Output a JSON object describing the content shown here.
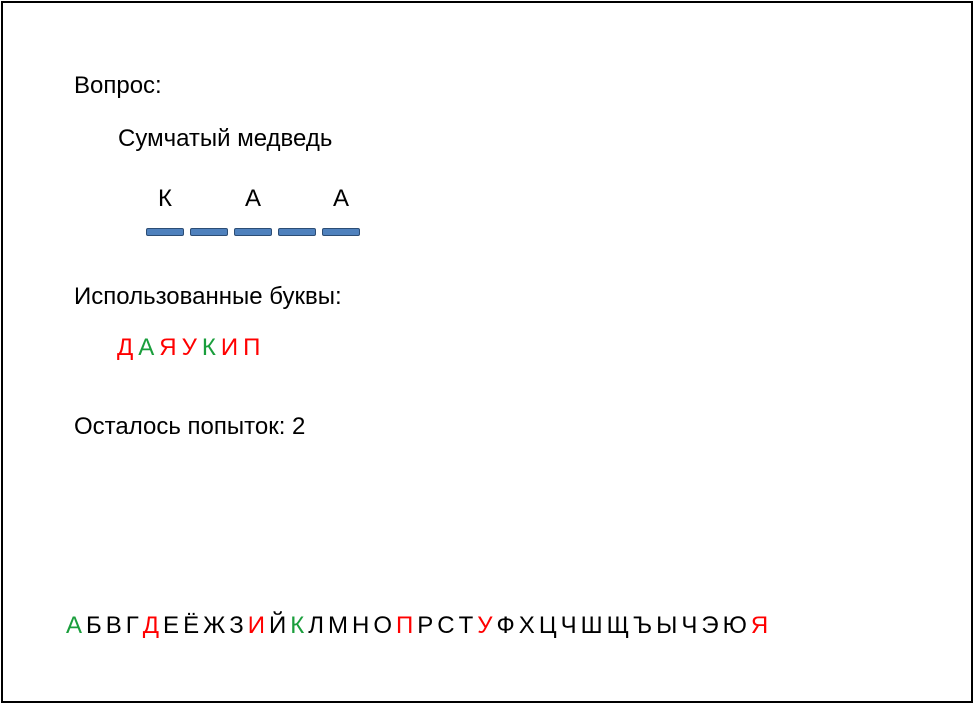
{
  "colors": {
    "correct": "#1a9e3c",
    "wrong": "#ff0000",
    "default": "#000000",
    "slot_bar": "#4f81bd"
  },
  "question": {
    "label": "Вопрос:",
    "hint": "Сумчатый медведь"
  },
  "word": {
    "slots": [
      "К",
      "",
      "А",
      "",
      "А"
    ]
  },
  "used": {
    "label": "Использованные буквы:",
    "letters": [
      {
        "char": "Д",
        "status": "wrong"
      },
      {
        "char": "А",
        "status": "correct"
      },
      {
        "char": "Я",
        "status": "wrong"
      },
      {
        "char": "У",
        "status": "wrong"
      },
      {
        "char": "К",
        "status": "correct"
      },
      {
        "char": "И",
        "status": "wrong"
      },
      {
        "char": "П",
        "status": "wrong"
      }
    ]
  },
  "attempts": {
    "text": "Осталось попыток: 2"
  },
  "alphabet": [
    {
      "char": "А",
      "status": "correct"
    },
    {
      "char": "Б",
      "status": "default"
    },
    {
      "char": "В",
      "status": "default"
    },
    {
      "char": "Г",
      "status": "default"
    },
    {
      "char": "Д",
      "status": "wrong"
    },
    {
      "char": "Е",
      "status": "default"
    },
    {
      "char": "Ё",
      "status": "default"
    },
    {
      "char": "Ж",
      "status": "default"
    },
    {
      "char": "З",
      "status": "default"
    },
    {
      "char": "И",
      "status": "wrong"
    },
    {
      "char": "Й",
      "status": "default"
    },
    {
      "char": "К",
      "status": "correct"
    },
    {
      "char": "Л",
      "status": "default"
    },
    {
      "char": "М",
      "status": "default"
    },
    {
      "char": "Н",
      "status": "default"
    },
    {
      "char": "О",
      "status": "default"
    },
    {
      "char": "П",
      "status": "wrong"
    },
    {
      "char": "Р",
      "status": "default"
    },
    {
      "char": "С",
      "status": "default"
    },
    {
      "char": "Т",
      "status": "default"
    },
    {
      "char": "У",
      "status": "wrong"
    },
    {
      "char": "Ф",
      "status": "default"
    },
    {
      "char": "Х",
      "status": "default"
    },
    {
      "char": "Ц",
      "status": "default"
    },
    {
      "char": "Ч",
      "status": "default"
    },
    {
      "char": "Ш",
      "status": "default"
    },
    {
      "char": "Щ",
      "status": "default"
    },
    {
      "char": "Ъ",
      "status": "default"
    },
    {
      "char": "Ы",
      "status": "default"
    },
    {
      "char": "Ч",
      "status": "default"
    },
    {
      "char": "Э",
      "status": "default"
    },
    {
      "char": "Ю",
      "status": "default"
    },
    {
      "char": "Я",
      "status": "wrong"
    }
  ]
}
